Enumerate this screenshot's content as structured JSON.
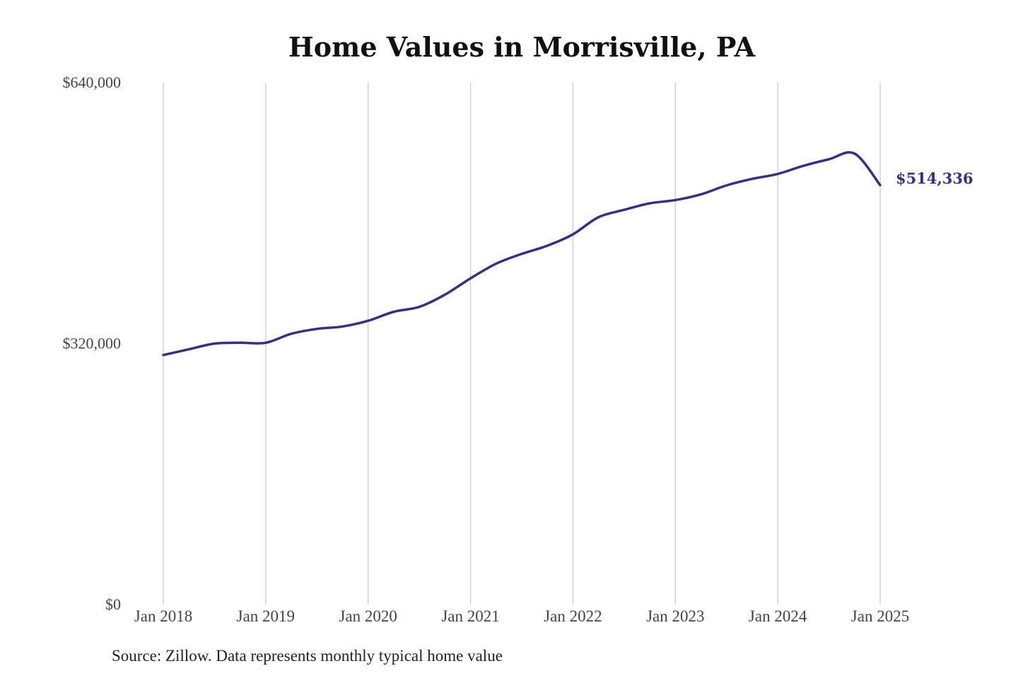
{
  "chart_data": {
    "type": "line",
    "title": "Home Values in Morrisville, PA",
    "source": "Source: Zillow. Data represents monthly typical home value",
    "y_ticks": [
      {
        "value": 0,
        "label": "$0"
      },
      {
        "value": 320000,
        "label": "$320,000"
      },
      {
        "value": 640000,
        "label": "$640,000"
      }
    ],
    "x_ticks": [
      {
        "value": "2018-01",
        "label": "Jan 2018"
      },
      {
        "value": "2019-01",
        "label": "Jan 2019"
      },
      {
        "value": "2020-01",
        "label": "Jan 2020"
      },
      {
        "value": "2021-01",
        "label": "Jan 2021"
      },
      {
        "value": "2022-01",
        "label": "Jan 2022"
      },
      {
        "value": "2023-01",
        "label": "Jan 2023"
      },
      {
        "value": "2024-01",
        "label": "Jan 2024"
      },
      {
        "value": "2025-01",
        "label": "Jan 2025"
      }
    ],
    "ylim": [
      0,
      640000
    ],
    "xlim": [
      "2018-01",
      "2025-01"
    ],
    "grid": "vertical",
    "line_color": "#34308a",
    "end_label": "$514,336",
    "series": [
      {
        "x": [
          "2018-01",
          "2018-04",
          "2018-07",
          "2018-10",
          "2019-01",
          "2019-04",
          "2019-07",
          "2019-10",
          "2020-01",
          "2020-04",
          "2020-07",
          "2020-10",
          "2021-01",
          "2021-04",
          "2021-07",
          "2021-10",
          "2022-01",
          "2022-04",
          "2022-07",
          "2022-10",
          "2023-01",
          "2023-04",
          "2023-07",
          "2023-10",
          "2024-01",
          "2024-04",
          "2024-07",
          "2024-10",
          "2025-01"
        ],
        "values": [
          306000,
          313000,
          320000,
          321000,
          321000,
          332000,
          338000,
          341000,
          348000,
          359000,
          365000,
          380000,
          400000,
          418000,
          430000,
          440000,
          454000,
          475000,
          484000,
          492000,
          496000,
          503000,
          514000,
          522000,
          528000,
          538000,
          546000,
          553000,
          514336
        ]
      }
    ]
  }
}
